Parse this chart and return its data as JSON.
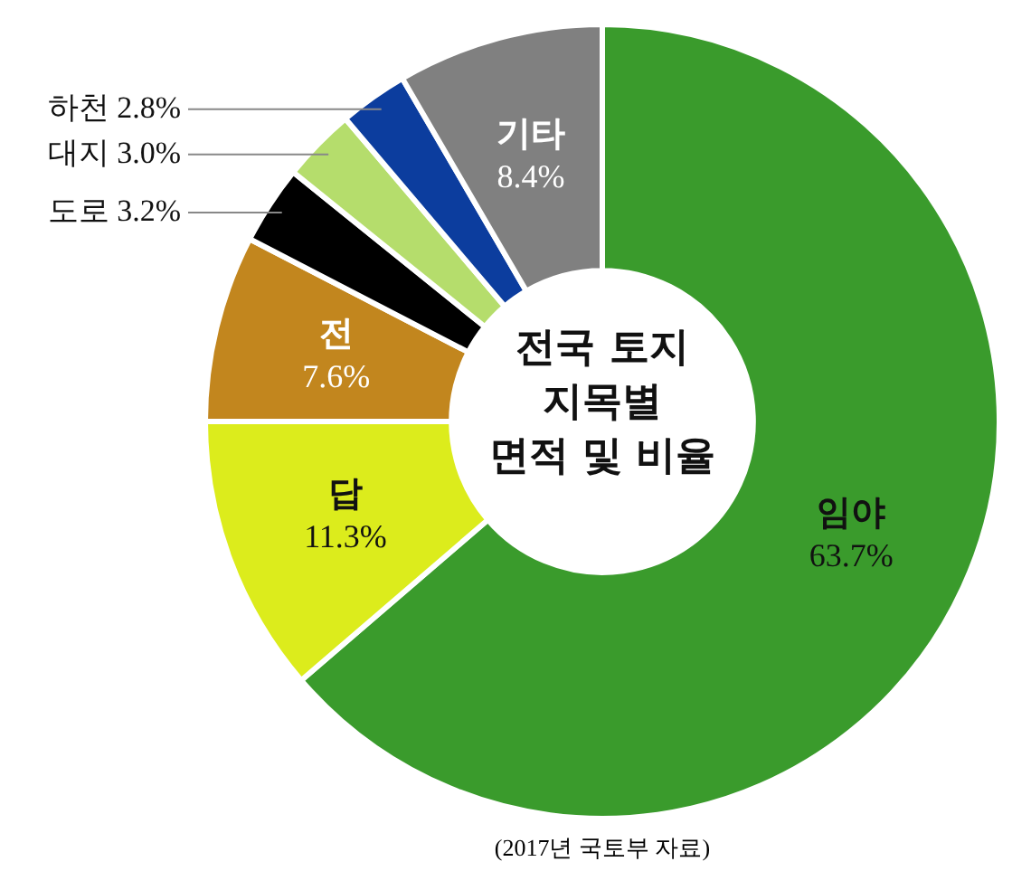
{
  "chart_data": {
    "type": "donut",
    "title": "전국 토지\n지목별\n면적 및 비율",
    "categories": [
      "임야",
      "답",
      "전",
      "도로",
      "대지",
      "하천",
      "기타"
    ],
    "values": [
      63.7,
      11.3,
      7.6,
      3.2,
      3.0,
      2.8,
      8.4
    ],
    "colors": [
      "#3a9b2c",
      "#dcec1c",
      "#c2861e",
      "#000000",
      "#b5dd6c",
      "#0c3d9e",
      "#808080"
    ],
    "value_labels": [
      "63.7%",
      "11.3%",
      "7.6%",
      "3.2%",
      "3.0%",
      "2.8%",
      "8.4%"
    ],
    "legend": false,
    "annotations": [
      "(2017년 국토부 자료)"
    ]
  }
}
